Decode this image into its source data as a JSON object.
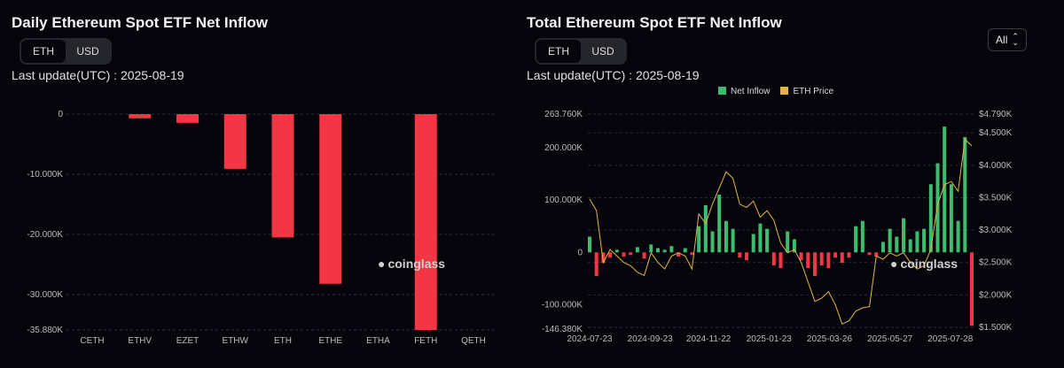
{
  "left": {
    "title": "Daily Ethereum Spot ETF Net Inflow",
    "toggle": [
      "ETH",
      "USD"
    ],
    "active": "ETH",
    "last_update": "Last update(UTC) : 2025-08-19",
    "watermark": "coinglass"
  },
  "right": {
    "title": "Total Ethereum Spot ETF Net Inflow",
    "toggle": [
      "ETH",
      "USD"
    ],
    "active": "ETH",
    "last_update": "Last update(UTC) : 2025-08-19",
    "range_select": "All",
    "watermark": "coinglass"
  },
  "colors": {
    "negative": "#f23645",
    "positive": "#3dbb6f",
    "price": "#e3b341",
    "background": "#05050b"
  },
  "chart_data": [
    {
      "type": "bar",
      "title": "Daily Ethereum Spot ETF Net Inflow",
      "categories": [
        "CETH",
        "ETHV",
        "EZET",
        "ETHW",
        "ETH",
        "ETHE",
        "ETHA",
        "FETH",
        "QETH"
      ],
      "values": [
        0,
        -0.7,
        -1.45,
        -9.1,
        -20.5,
        -28.2,
        0,
        -35.88,
        0
      ],
      "unit": "K ETH",
      "ylim": [
        -35.88,
        0
      ],
      "yticks": [
        "0",
        "-10.000K",
        "-20.000K",
        "-30.000K",
        "-35.880K"
      ],
      "ytick_values": [
        0,
        -10,
        -20,
        -30,
        -35.88
      ],
      "grid": true
    },
    {
      "type": "bar+line",
      "title": "Total Ethereum Spot ETF Net Inflow",
      "legend": [
        "Net Inflow",
        "ETH Price"
      ],
      "legend_placement": "top",
      "x": [
        "2024-07-23",
        "2024-07-30",
        "2024-08-06",
        "2024-08-13",
        "2024-08-20",
        "2024-08-27",
        "2024-09-03",
        "2024-09-10",
        "2024-09-17",
        "2024-09-24",
        "2024-10-01",
        "2024-10-08",
        "2024-10-15",
        "2024-10-22",
        "2024-10-29",
        "2024-11-05",
        "2024-11-12",
        "2024-11-19",
        "2024-11-26",
        "2024-12-03",
        "2024-12-10",
        "2024-12-17",
        "2024-12-24",
        "2024-12-31",
        "2025-01-07",
        "2025-01-14",
        "2025-01-21",
        "2025-01-28",
        "2025-02-04",
        "2025-02-11",
        "2025-02-18",
        "2025-02-25",
        "2025-03-04",
        "2025-03-11",
        "2025-03-18",
        "2025-03-25",
        "2025-04-01",
        "2025-04-08",
        "2025-04-15",
        "2025-04-22",
        "2025-04-29",
        "2025-05-06",
        "2025-05-13",
        "2025-05-20",
        "2025-05-27",
        "2025-06-03",
        "2025-06-10",
        "2025-06-17",
        "2025-06-24",
        "2025-07-01",
        "2025-07-08",
        "2025-07-15",
        "2025-07-22",
        "2025-07-29",
        "2025-08-05",
        "2025-08-12",
        "2025-08-19"
      ],
      "series": [
        {
          "name": "Net Inflow",
          "axis": "left",
          "unit": "K ETH",
          "values": [
            30,
            -45,
            -20,
            -10,
            5,
            -8,
            -5,
            10,
            -12,
            15,
            8,
            5,
            12,
            -8,
            8,
            -5,
            50,
            90,
            40,
            110,
            60,
            45,
            -10,
            -15,
            35,
            55,
            45,
            -25,
            -30,
            40,
            25,
            -15,
            -30,
            -45,
            -25,
            -30,
            -10,
            -20,
            -10,
            50,
            60,
            -5,
            -8,
            20,
            45,
            30,
            65,
            25,
            40,
            45,
            130,
            170,
            240,
            130,
            60,
            220,
            -140
          ]
        },
        {
          "name": "ETH Price",
          "axis": "right",
          "unit": "USD",
          "values": [
            3480,
            3300,
            2500,
            2700,
            2600,
            2500,
            2450,
            2350,
            2300,
            2650,
            2500,
            2400,
            2600,
            2650,
            2600,
            2400,
            3250,
            3100,
            3400,
            3650,
            3900,
            3800,
            3400,
            3350,
            3450,
            3200,
            3300,
            3150,
            2800,
            2650,
            2700,
            2500,
            2200,
            1900,
            1950,
            2050,
            1850,
            1550,
            1600,
            1750,
            1800,
            1820,
            2600,
            2550,
            2650,
            2600,
            2650,
            2500,
            2400,
            2450,
            2700,
            3400,
            3700,
            3750,
            3600,
            4400,
            4300
          ]
        }
      ],
      "xticks": [
        "2024-07-23",
        "2024-09-23",
        "2024-11-22",
        "2025-01-23",
        "2025-03-26",
        "2025-05-27",
        "2025-07-28"
      ],
      "ylim_left": [
        -146.38,
        263.76
      ],
      "yticks_left": [
        "263.760K",
        "200.000K",
        "100.000K",
        "0",
        "-100.000K",
        "-146.380K"
      ],
      "ytick_left_values": [
        263.76,
        200,
        100,
        0,
        -100,
        -146.38
      ],
      "ylim_right": [
        1500,
        4790
      ],
      "yticks_right": [
        "$4.790K",
        "$4.500K",
        "$4.000K",
        "$3.500K",
        "$3.000K",
        "$2.500K",
        "$2.000K",
        "$1.500K"
      ],
      "ytick_right_values": [
        4790,
        4500,
        4000,
        3500,
        3000,
        2500,
        2000,
        1500
      ],
      "grid": true
    }
  ]
}
